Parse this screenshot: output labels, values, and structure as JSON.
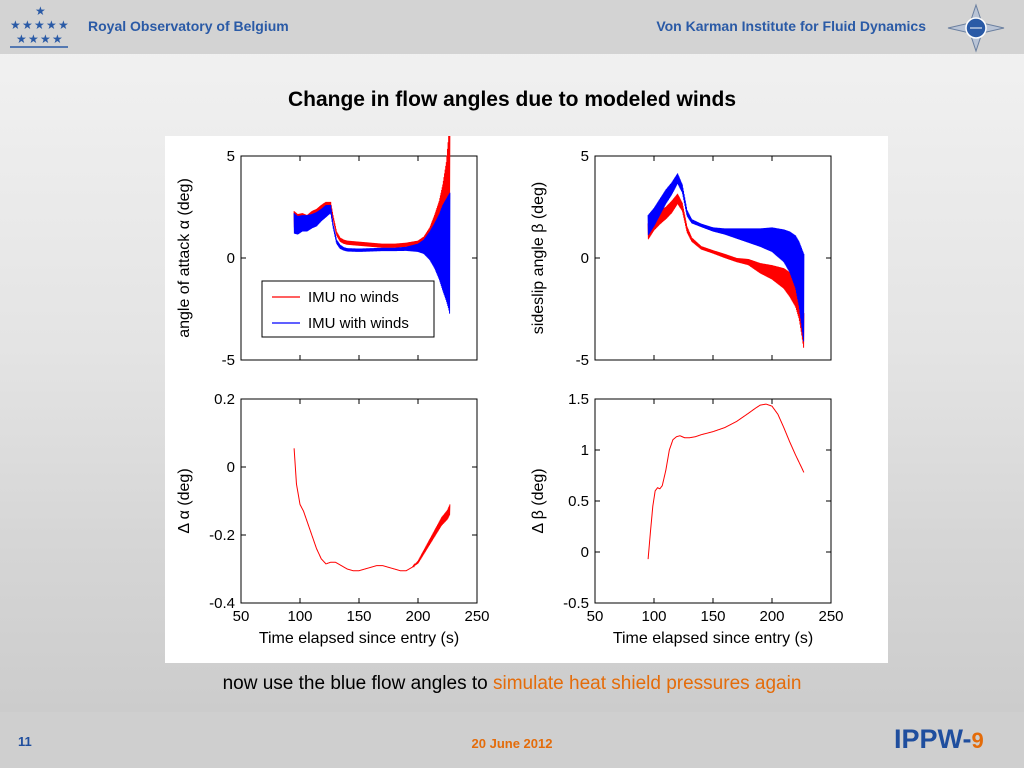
{
  "header": {
    "left_title": "Royal Observatory of Belgium",
    "right_title": "Von Karman Institute for Fluid Dynamics"
  },
  "slide_title": "Change in flow angles due to modeled winds",
  "caption": {
    "lead": "now use the blue flow angles to ",
    "highlight": "simulate heat shield pressures again"
  },
  "footer": {
    "page": "11",
    "date": "20 June 2012",
    "brand": "IPPW-",
    "brand_num": "9"
  },
  "colors": {
    "series_red": "#ff0000",
    "series_blue": "#0000ff",
    "accent_blue": "#2a5aa6",
    "accent_orange": "#e46c0a"
  },
  "chart_data": [
    {
      "type": "line",
      "title": "",
      "xlabel": "",
      "ylabel": "angle of attack α (deg)",
      "xlim": [
        50,
        250
      ],
      "ylim": [
        -5,
        5
      ],
      "xticks": [],
      "yticks": [
        -5,
        0,
        5
      ],
      "legend_position": "lower-left",
      "series": [
        {
          "name": "IMU no winds",
          "color": "#ff0000",
          "x": [
            95,
            98,
            102,
            106,
            110,
            114,
            118,
            122,
            126,
            128,
            131,
            134,
            137,
            140,
            150,
            160,
            170,
            180,
            190,
            200,
            205,
            210,
            214,
            218,
            221,
            224,
            226,
            227
          ],
          "y": [
            1.9,
            1.8,
            1.9,
            1.8,
            2.0,
            2.1,
            2.3,
            2.5,
            2.6,
            2.0,
            1.2,
            0.9,
            0.8,
            0.75,
            0.7,
            0.65,
            0.6,
            0.6,
            0.65,
            0.7,
            0.8,
            1.0,
            1.3,
            1.7,
            2.3,
            3.2,
            4.4,
            4.6
          ],
          "osc": [
            0.4,
            0.35,
            0.3,
            0.3,
            0.3,
            0.3,
            0.3,
            0.25,
            0.15,
            0.1,
            0.1,
            0.1,
            0.1,
            0.1,
            0.1,
            0.1,
            0.1,
            0.1,
            0.1,
            0.15,
            0.25,
            0.5,
            0.8,
            1.1,
            1.3,
            1.5,
            1.6,
            1.7
          ]
        },
        {
          "name": "IMU with winds",
          "color": "#0000ff",
          "x": [
            95,
            98,
            102,
            106,
            110,
            114,
            118,
            122,
            126,
            128,
            131,
            134,
            137,
            140,
            150,
            160,
            170,
            180,
            190,
            200,
            205,
            210,
            214,
            218,
            221,
            224,
            226,
            227
          ],
          "y": [
            1.7,
            1.6,
            1.7,
            1.7,
            1.8,
            1.9,
            2.1,
            2.3,
            2.4,
            1.6,
            0.8,
            0.55,
            0.45,
            0.4,
            0.38,
            0.4,
            0.42,
            0.42,
            0.45,
            0.5,
            0.55,
            0.6,
            0.6,
            0.55,
            0.5,
            0.4,
            0.3,
            0.2
          ],
          "osc": [
            0.5,
            0.45,
            0.4,
            0.4,
            0.35,
            0.35,
            0.3,
            0.3,
            0.2,
            0.1,
            0.1,
            0.1,
            0.08,
            0.08,
            0.08,
            0.08,
            0.08,
            0.08,
            0.1,
            0.2,
            0.35,
            0.7,
            1.1,
            1.6,
            2.1,
            2.5,
            2.8,
            3.0
          ]
        }
      ]
    },
    {
      "type": "line",
      "title": "",
      "xlabel": "",
      "ylabel": "sideslip angle β (deg)",
      "xlim": [
        50,
        250
      ],
      "ylim": [
        -5,
        5
      ],
      "xticks": [],
      "yticks": [
        -5,
        0,
        5
      ],
      "series": [
        {
          "name": "",
          "color": "#ff0000",
          "x": [
            95,
            100,
            105,
            110,
            115,
            120,
            124,
            128,
            132,
            140,
            150,
            160,
            170,
            180,
            190,
            200,
            210,
            215,
            220,
            223,
            225,
            227
          ],
          "y": [
            1.3,
            1.7,
            2.0,
            2.2,
            2.5,
            2.9,
            2.5,
            1.4,
            0.9,
            0.5,
            0.3,
            0.1,
            -0.1,
            -0.2,
            -0.5,
            -0.7,
            -1.0,
            -1.3,
            -1.7,
            -2.2,
            -2.8,
            -3.6
          ],
          "osc": [
            0.4,
            0.35,
            0.35,
            0.3,
            0.3,
            0.25,
            0.2,
            0.15,
            0.1,
            0.08,
            0.08,
            0.1,
            0.1,
            0.15,
            0.25,
            0.35,
            0.5,
            0.6,
            0.7,
            0.8,
            0.9,
            0.9
          ]
        },
        {
          "name": "",
          "color": "#0000ff",
          "x": [
            95,
            100,
            105,
            110,
            115,
            120,
            124,
            128,
            132,
            140,
            150,
            160,
            170,
            180,
            190,
            200,
            210,
            215,
            220,
            223,
            225,
            227
          ],
          "y": [
            1.6,
            2.0,
            2.5,
            3.0,
            3.4,
            3.9,
            3.4,
            2.2,
            1.8,
            1.6,
            1.4,
            1.3,
            1.2,
            1.1,
            1.0,
            0.9,
            0.6,
            0.3,
            -0.2,
            -0.8,
            -1.4,
            -2.0
          ],
          "osc": [
            0.5,
            0.45,
            0.4,
            0.35,
            0.3,
            0.25,
            0.2,
            0.15,
            0.1,
            0.08,
            0.1,
            0.15,
            0.25,
            0.35,
            0.45,
            0.6,
            0.8,
            1.0,
            1.3,
            1.6,
            1.9,
            2.2
          ]
        }
      ]
    },
    {
      "type": "line",
      "title": "",
      "xlabel": "Time elapsed since entry (s)",
      "ylabel": "Δ α (deg)",
      "xlim": [
        50,
        250
      ],
      "ylim": [
        -0.4,
        0.2
      ],
      "xticks": [
        50,
        100,
        150,
        200,
        250
      ],
      "yticks": [
        -0.4,
        -0.2,
        0,
        0.2
      ],
      "ytick_labels": [
        "-0.4",
        "-0.2",
        "0",
        "0.2"
      ],
      "series": [
        {
          "name": "",
          "color": "#ff0000",
          "x": [
            95,
            97,
            100,
            103,
            106,
            110,
            114,
            118,
            122,
            126,
            130,
            135,
            140,
            145,
            150,
            155,
            160,
            165,
            170,
            175,
            180,
            185,
            190,
            195,
            200,
            205,
            210,
            215,
            220,
            225,
            227
          ],
          "y": [
            0.055,
            -0.05,
            -0.11,
            -0.13,
            -0.16,
            -0.2,
            -0.24,
            -0.27,
            -0.285,
            -0.28,
            -0.28,
            -0.29,
            -0.3,
            -0.305,
            -0.305,
            -0.3,
            -0.295,
            -0.29,
            -0.29,
            -0.295,
            -0.3,
            -0.305,
            -0.305,
            -0.295,
            -0.28,
            -0.25,
            -0.22,
            -0.19,
            -0.16,
            -0.14,
            -0.125
          ],
          "osc": [
            0,
            0,
            0,
            0,
            0,
            0,
            0,
            0,
            0,
            0,
            0,
            0,
            0,
            0,
            0,
            0,
            0,
            0,
            0,
            0,
            0,
            0,
            0,
            0,
            0.004,
            0.006,
            0.008,
            0.01,
            0.012,
            0.014,
            0.015
          ]
        }
      ]
    },
    {
      "type": "line",
      "title": "",
      "xlabel": "Time elapsed since entry (s)",
      "ylabel": "Δ β (deg)",
      "xlim": [
        50,
        250
      ],
      "ylim": [
        -0.5,
        1.5
      ],
      "xticks": [
        50,
        100,
        150,
        200,
        250
      ],
      "yticks": [
        -0.5,
        0,
        0.5,
        1,
        1.5
      ],
      "ytick_labels": [
        "-0.5",
        "0",
        "0.5",
        "1",
        "1.5"
      ],
      "series": [
        {
          "name": "",
          "color": "#ff0000",
          "x": [
            95,
            97,
            99,
            101,
            103,
            105,
            107,
            110,
            113,
            116,
            119,
            122,
            126,
            130,
            135,
            140,
            150,
            160,
            170,
            180,
            186,
            190,
            195,
            200,
            205,
            210,
            215,
            220,
            225,
            227
          ],
          "y": [
            -0.07,
            0.2,
            0.45,
            0.6,
            0.63,
            0.62,
            0.65,
            0.8,
            1.0,
            1.1,
            1.13,
            1.14,
            1.12,
            1.12,
            1.13,
            1.15,
            1.18,
            1.22,
            1.28,
            1.36,
            1.41,
            1.44,
            1.45,
            1.43,
            1.35,
            1.22,
            1.08,
            0.95,
            0.83,
            0.78
          ],
          "osc": [
            0,
            0,
            0,
            0,
            0,
            0,
            0,
            0,
            0,
            0,
            0,
            0,
            0,
            0,
            0,
            0,
            0,
            0,
            0,
            0,
            0,
            0,
            0,
            0,
            0,
            0,
            0,
            0,
            0,
            0
          ]
        }
      ]
    }
  ]
}
